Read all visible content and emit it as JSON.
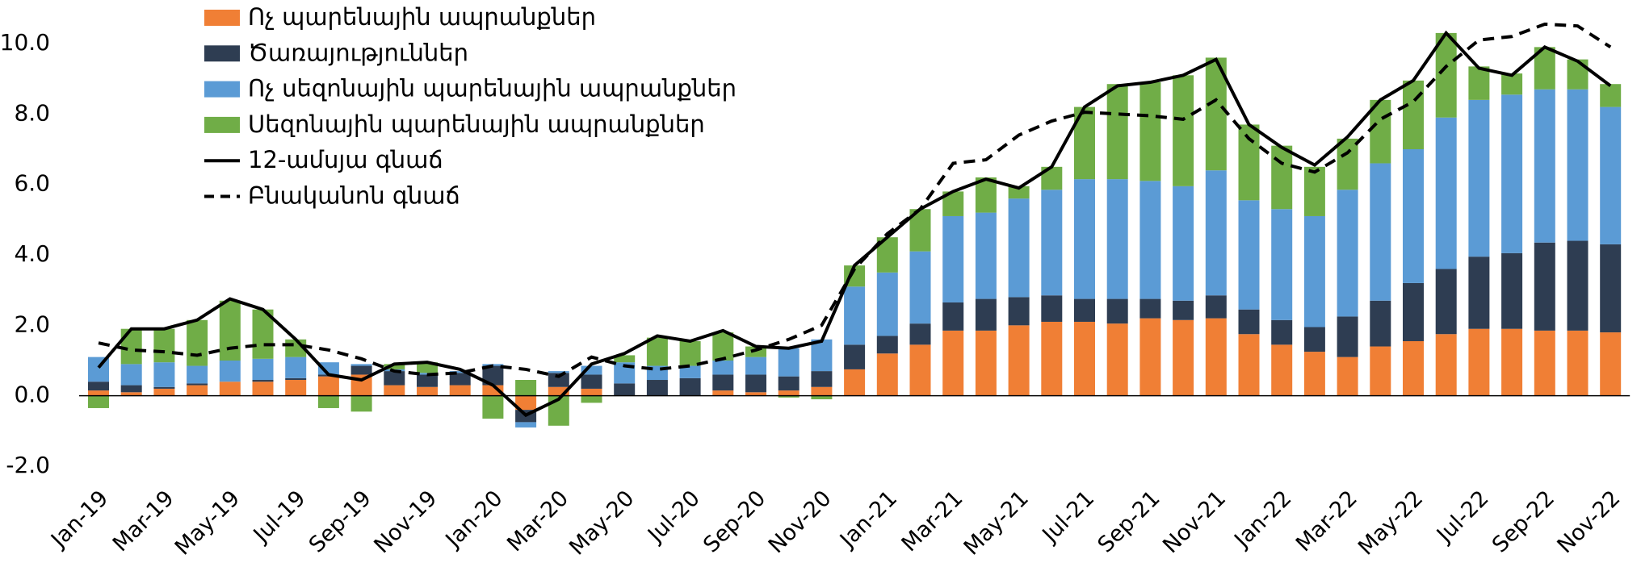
{
  "chart_data": {
    "type": "bar",
    "stacked": true,
    "categories": [
      "Jan-19",
      null,
      "Mar-19",
      null,
      "May-19",
      null,
      "Jul-19",
      null,
      "Sep-19",
      null,
      "Nov-19",
      null,
      "Jan-20",
      null,
      "Mar-20",
      null,
      "May-20",
      null,
      "Jul-20",
      null,
      "Sep-20",
      null,
      "Nov-20",
      null,
      "Jan-21",
      null,
      "Mar-21",
      null,
      "May-21",
      null,
      "Jul-21",
      null,
      "Sep-21",
      null,
      "Nov-21",
      null,
      "Jan-22",
      null,
      "Mar-22",
      null,
      "May-22",
      null,
      "Jul-22",
      null,
      "Sep-22",
      null,
      "Nov-22"
    ],
    "series": [
      {
        "name": "Ոչ պարենային ապրանքներ",
        "color": "#f07f35",
        "values": [
          0.15,
          0.1,
          0.2,
          0.3,
          0.4,
          0.4,
          0.45,
          0.55,
          0.6,
          0.3,
          0.25,
          0.3,
          0.3,
          -0.4,
          0.25,
          0.2,
          0.0,
          0.0,
          0.0,
          0.15,
          0.1,
          0.15,
          0.25,
          0.75,
          1.2,
          1.45,
          1.85,
          1.85,
          2.0,
          2.1,
          2.1,
          2.05,
          2.2,
          2.15,
          2.2,
          1.75,
          1.45,
          1.25,
          1.1,
          1.4,
          1.55,
          1.75,
          1.9,
          1.9,
          1.85,
          1.85,
          1.8
        ]
      },
      {
        "name": "Ծառայություններ",
        "color": "#2e3d52",
        "values": [
          0.25,
          0.2,
          0.05,
          0.05,
          0.0,
          0.05,
          0.05,
          0.05,
          0.25,
          0.4,
          0.35,
          0.35,
          0.55,
          -0.35,
          0.4,
          0.4,
          0.35,
          0.45,
          0.5,
          0.45,
          0.5,
          0.4,
          0.45,
          0.7,
          0.5,
          0.6,
          0.8,
          0.9,
          0.8,
          0.75,
          0.65,
          0.7,
          0.55,
          0.55,
          0.65,
          0.7,
          0.7,
          0.7,
          1.15,
          1.3,
          1.65,
          1.85,
          2.05,
          2.15,
          2.5,
          2.55,
          2.5
        ]
      },
      {
        "name": "Ոչ սեզոնային պարենային ապրանքներ",
        "color": "#5b9bd5",
        "values": [
          0.7,
          0.6,
          0.7,
          0.5,
          0.6,
          0.6,
          0.6,
          0.35,
          0.05,
          0.05,
          0.05,
          0.05,
          0.05,
          -0.15,
          0.05,
          0.25,
          0.6,
          0.4,
          0.35,
          0.4,
          0.5,
          0.8,
          0.9,
          1.65,
          1.8,
          2.05,
          2.45,
          2.45,
          2.8,
          3.0,
          3.4,
          3.4,
          3.35,
          3.25,
          3.55,
          3.1,
          3.15,
          3.15,
          3.6,
          3.9,
          3.8,
          4.3,
          4.45,
          4.5,
          4.35,
          4.3,
          3.9
        ]
      },
      {
        "name": "Սեզոնային պարենային ապրանքներ",
        "color": "#70ad47",
        "values": [
          -0.35,
          1.0,
          0.95,
          1.3,
          1.7,
          1.4,
          0.5,
          -0.35,
          -0.45,
          0.15,
          0.3,
          0.0,
          -0.65,
          0.45,
          -0.85,
          -0.2,
          0.2,
          0.8,
          0.7,
          0.8,
          0.3,
          -0.05,
          -0.1,
          0.6,
          1.0,
          1.2,
          0.7,
          1.0,
          0.35,
          0.65,
          2.05,
          2.7,
          2.8,
          3.15,
          3.2,
          2.15,
          1.8,
          1.4,
          1.45,
          1.8,
          1.95,
          2.4,
          0.95,
          0.6,
          1.2,
          0.85,
          0.65
        ]
      },
      {
        "name": "12-ամսյա գնաճ",
        "color": "#000000",
        "type": "line",
        "dashed": false,
        "values": [
          0.8,
          1.9,
          1.9,
          2.15,
          2.75,
          2.45,
          1.6,
          0.6,
          0.45,
          0.9,
          0.95,
          0.75,
          0.3,
          -0.55,
          -0.1,
          0.9,
          1.2,
          1.7,
          1.55,
          1.85,
          1.4,
          1.35,
          1.55,
          3.7,
          4.5,
          5.3,
          5.8,
          6.15,
          5.9,
          6.5,
          8.2,
          8.8,
          8.9,
          9.1,
          9.55,
          7.7,
          7.05,
          6.55,
          7.35,
          8.4,
          8.95,
          10.3,
          9.3,
          9.1,
          9.9,
          9.5,
          8.8
        ]
      },
      {
        "name": "Բնականոն գնաճ",
        "color": "#000000",
        "type": "line",
        "dashed": true,
        "values": [
          1.5,
          1.3,
          1.25,
          1.15,
          1.35,
          1.45,
          1.45,
          1.3,
          1.05,
          0.7,
          0.6,
          0.65,
          0.85,
          0.75,
          0.55,
          1.1,
          0.85,
          0.75,
          0.85,
          1.05,
          1.3,
          1.6,
          2.0,
          3.6,
          4.6,
          5.3,
          6.6,
          6.7,
          7.4,
          7.8,
          8.05,
          8.0,
          7.95,
          7.85,
          8.4,
          7.3,
          6.6,
          6.35,
          6.9,
          7.85,
          8.35,
          9.35,
          10.1,
          10.2,
          10.55,
          10.5,
          9.9
        ]
      }
    ],
    "ylim": [
      -2,
      10
    ],
    "yticks": [
      {
        "value": -2,
        "label": "-2.0"
      },
      {
        "value": 0,
        "label": "0.0"
      },
      {
        "value": 2,
        "label": "2.0"
      },
      {
        "value": 4,
        "label": "4.0"
      },
      {
        "value": 6,
        "label": "6.0"
      },
      {
        "value": 8,
        "label": "8.0"
      },
      {
        "value": 10,
        "label": "10.0"
      }
    ],
    "grid": false,
    "legend": "upper left"
  }
}
